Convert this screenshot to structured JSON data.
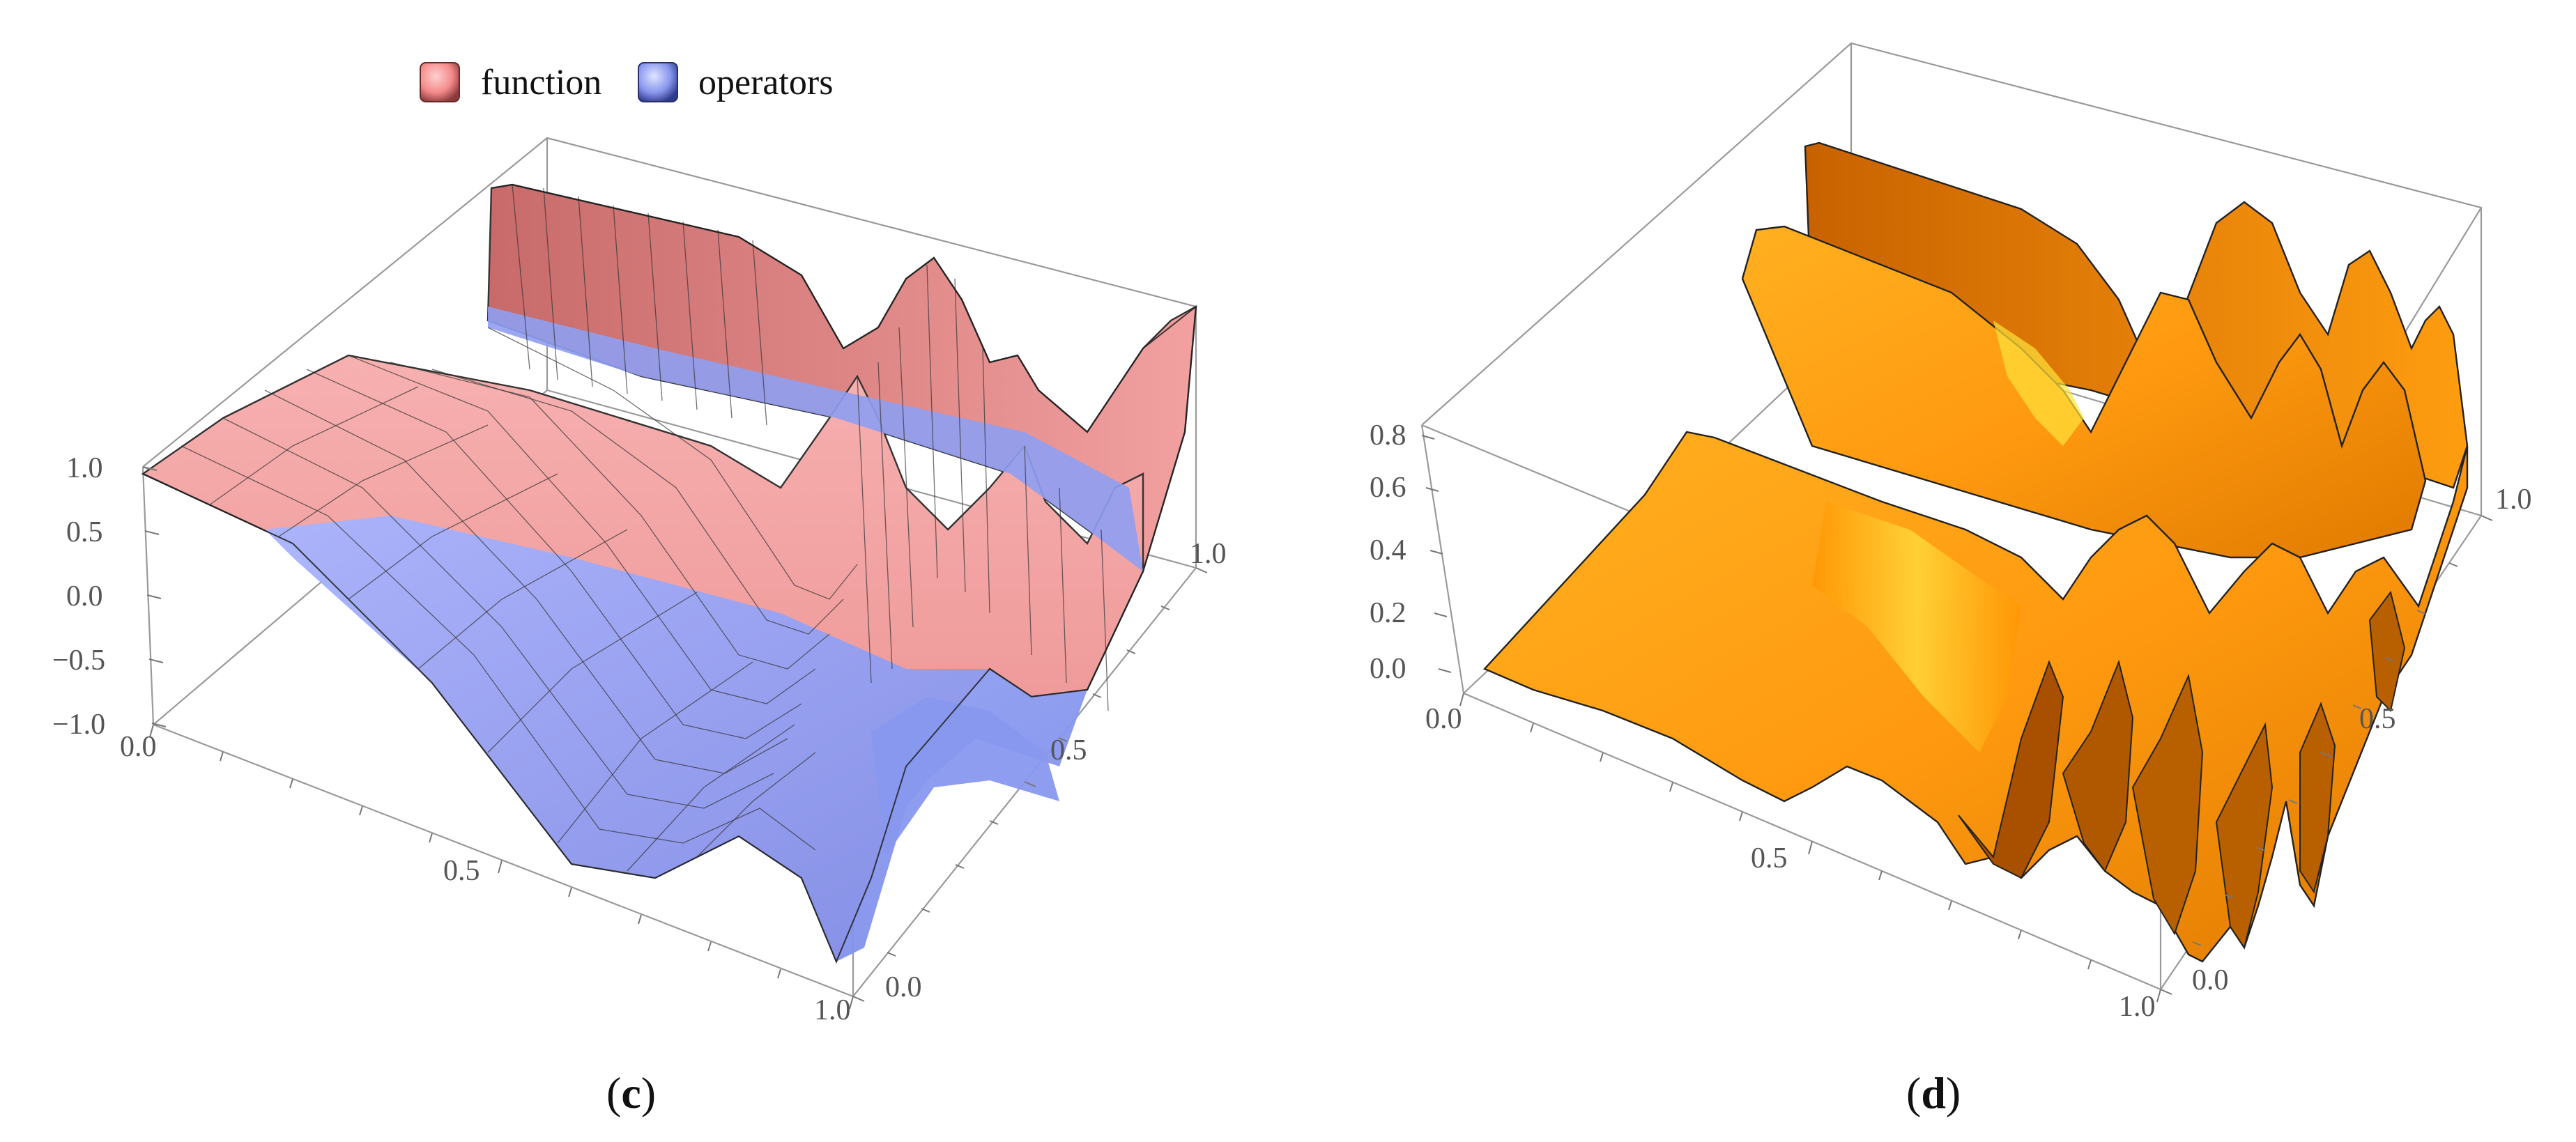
{
  "figure": {
    "panels": [
      {
        "label": "c"
      },
      {
        "label": "d"
      }
    ]
  },
  "chart_data": [
    {
      "type": "surface3d",
      "panel": "c",
      "title": "",
      "legend": [
        {
          "name": "function",
          "color": "#f08080"
        },
        {
          "name": "operators",
          "color": "#8a9af0"
        }
      ],
      "legend_position": "top",
      "z_ticks": [
        "1.0",
        "0.5",
        "0.0",
        "−0.5",
        "−1.0"
      ],
      "x_ticks": [
        "0.0",
        "0.5",
        "1.0"
      ],
      "y_ticks": [
        "0.0",
        "0.5",
        "1.0"
      ],
      "x_range": [
        0,
        1
      ],
      "y_range": [
        0,
        1
      ],
      "z_range": [
        -1,
        1
      ],
      "series": [
        {
          "name": "function",
          "color": "#f08080"
        },
        {
          "name": "operators",
          "color": "#8a9af0"
        }
      ]
    },
    {
      "type": "surface3d",
      "panel": "d",
      "title": "",
      "z_ticks": [
        "0.8",
        "0.6",
        "0.4",
        "0.2",
        "0.0"
      ],
      "x_ticks": [
        "0.0",
        "0.5",
        "1.0"
      ],
      "y_ticks": [
        "0.0",
        "0.5",
        "1.0"
      ],
      "x_range": [
        0,
        1
      ],
      "y_range": [
        0,
        1
      ],
      "z_range": [
        0,
        0.85
      ],
      "series": [
        {
          "name": "surface",
          "color": "#ff9a10"
        }
      ]
    }
  ]
}
